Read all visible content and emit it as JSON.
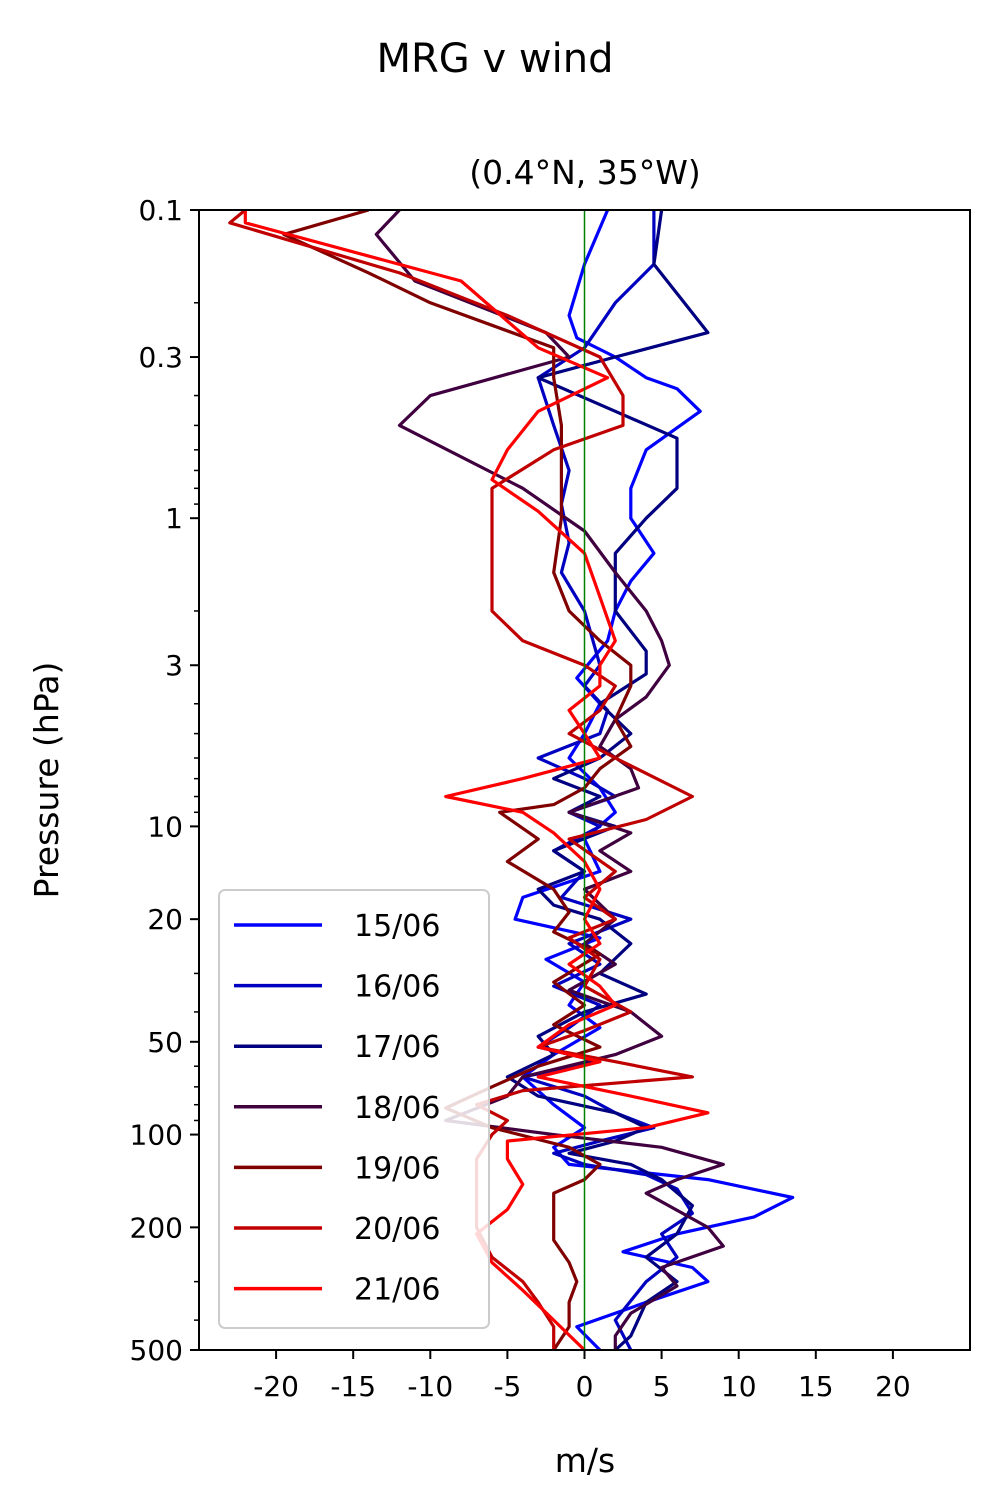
{
  "chart_data": {
    "type": "line",
    "title": "MRG v wind",
    "subtitle": "(0.4°N, 35°W)",
    "xlabel": "m/s",
    "ylabel": "Pressure (hPa)",
    "xlim": [
      -25,
      25
    ],
    "ylim": [
      500,
      0.1
    ],
    "y_scale": "log",
    "y_inverted": true,
    "xticks": [
      -20,
      -15,
      -10,
      -5,
      0,
      5,
      10,
      15,
      20
    ],
    "xtick_labels": [
      "-20",
      "-15",
      "-10",
      "-5",
      "0",
      "5",
      "10",
      "15",
      "20"
    ],
    "yticks": [
      0.1,
      0.3,
      1,
      3,
      10,
      20,
      50,
      100,
      200,
      500
    ],
    "ytick_labels": [
      "0.1",
      "0.3",
      "1",
      "3",
      "10",
      "20",
      "50",
      "100",
      "200",
      "500"
    ],
    "reference_line": {
      "x": 0,
      "color": "#008000"
    },
    "grid": false,
    "legend_position": "lower-left",
    "series": [
      {
        "name": "15/06",
        "color": "#0000ff",
        "points": [
          [
            1.5,
            0.1
          ],
          [
            0,
            0.15
          ],
          [
            -1,
            0.22
          ],
          [
            -0.5,
            0.26
          ],
          [
            2,
            0.3
          ],
          [
            4,
            0.35
          ],
          [
            6,
            0.38
          ],
          [
            7.5,
            0.45
          ],
          [
            4,
            0.6
          ],
          [
            3,
            0.8
          ],
          [
            3,
            1.0
          ],
          [
            4.5,
            1.3
          ],
          [
            3,
            1.6
          ],
          [
            2,
            2.0
          ],
          [
            1.5,
            2.5
          ],
          [
            -0.5,
            3.3
          ],
          [
            1,
            4.0
          ],
          [
            0,
            5.0
          ],
          [
            -1,
            6.0
          ],
          [
            1,
            7.5
          ],
          [
            2,
            9.0
          ],
          [
            0,
            11
          ],
          [
            1,
            14
          ],
          [
            -4,
            17
          ],
          [
            -4.5,
            20
          ],
          [
            1,
            23
          ],
          [
            -2.5,
            27
          ],
          [
            0,
            32
          ],
          [
            -1,
            38
          ],
          [
            1,
            45
          ],
          [
            -2,
            55
          ],
          [
            -4,
            65
          ],
          [
            -2,
            80
          ],
          [
            0,
            95
          ],
          [
            -2,
            110
          ],
          [
            -1,
            125
          ],
          [
            8,
            140
          ],
          [
            13.5,
            160
          ],
          [
            11,
            185
          ],
          [
            6,
            210
          ],
          [
            2.5,
            240
          ],
          [
            7,
            270
          ],
          [
            8,
            300
          ],
          [
            4,
            350
          ],
          [
            -0.5,
            420
          ],
          [
            1,
            500
          ]
        ]
      },
      {
        "name": "16/06",
        "color": "#0000c0",
        "points": [
          [
            4.5,
            0.1
          ],
          [
            4.5,
            0.15
          ],
          [
            2,
            0.2
          ],
          [
            0,
            0.28
          ],
          [
            -3,
            0.35
          ],
          [
            -2,
            0.5
          ],
          [
            -1,
            0.7
          ],
          [
            -1.5,
            0.9
          ],
          [
            -1,
            1.2
          ],
          [
            -1.5,
            1.5
          ],
          [
            0,
            2.0
          ],
          [
            1,
            3.0
          ],
          [
            0,
            3.5
          ],
          [
            1.5,
            4.2
          ],
          [
            1,
            5.0
          ],
          [
            -3,
            6.0
          ],
          [
            0,
            7.0
          ],
          [
            2,
            8.0
          ],
          [
            -1,
            9.0
          ],
          [
            1,
            10
          ],
          [
            -2,
            12
          ],
          [
            0,
            14
          ],
          [
            -1.5,
            17
          ],
          [
            3,
            20
          ],
          [
            -1,
            24
          ],
          [
            1,
            28
          ],
          [
            -2,
            33
          ],
          [
            1,
            38
          ],
          [
            -1,
            45
          ],
          [
            -3,
            52
          ],
          [
            1,
            58
          ],
          [
            -4,
            65
          ],
          [
            0,
            75
          ],
          [
            2,
            85
          ],
          [
            4.5,
            95
          ],
          [
            1,
            105
          ],
          [
            -2,
            115
          ],
          [
            0,
            125
          ],
          [
            4,
            135
          ],
          [
            6,
            150
          ],
          [
            7,
            180
          ],
          [
            5,
            210
          ],
          [
            6,
            250
          ],
          [
            4,
            300
          ],
          [
            2,
            400
          ],
          [
            3,
            500
          ]
        ]
      },
      {
        "name": "17/06",
        "color": "#000080",
        "points": [
          [
            5,
            0.1
          ],
          [
            4.5,
            0.15
          ],
          [
            8,
            0.25
          ],
          [
            2,
            0.3
          ],
          [
            -3,
            0.35
          ],
          [
            2,
            0.45
          ],
          [
            6,
            0.55
          ],
          [
            6,
            0.8
          ],
          [
            4,
            1.0
          ],
          [
            2,
            1.3
          ],
          [
            2,
            2.0
          ],
          [
            4,
            2.7
          ],
          [
            4,
            3.2
          ],
          [
            1,
            4.0
          ],
          [
            3,
            5.0
          ],
          [
            1,
            6.0
          ],
          [
            -2,
            7.0
          ],
          [
            1,
            8.0
          ],
          [
            -1,
            9.0
          ],
          [
            2,
            10
          ],
          [
            -2,
            12
          ],
          [
            0,
            14
          ],
          [
            -3,
            16
          ],
          [
            -2,
            18
          ],
          [
            1,
            20
          ],
          [
            3,
            24
          ],
          [
            1,
            30
          ],
          [
            4,
            35
          ],
          [
            0,
            40
          ],
          [
            -3,
            48
          ],
          [
            -2,
            55
          ],
          [
            -5,
            65
          ],
          [
            -3,
            75
          ],
          [
            2,
            85
          ],
          [
            4,
            95
          ],
          [
            2,
            105
          ],
          [
            -1,
            115
          ],
          [
            3,
            125
          ],
          [
            5,
            140
          ],
          [
            7,
            170
          ],
          [
            6,
            210
          ],
          [
            4,
            250
          ],
          [
            6,
            300
          ],
          [
            4,
            350
          ],
          [
            3,
            450
          ],
          [
            2,
            500
          ]
        ]
      },
      {
        "name": "18/06",
        "color": "#400040",
        "points": [
          [
            -12,
            0.1
          ],
          [
            -13.5,
            0.12
          ],
          [
            -11,
            0.17
          ],
          [
            -2.5,
            0.25
          ],
          [
            -1,
            0.3
          ],
          [
            -10,
            0.4
          ],
          [
            -12,
            0.5
          ],
          [
            -4,
            0.8
          ],
          [
            0,
            1.1
          ],
          [
            2,
            1.5
          ],
          [
            4,
            2.0
          ],
          [
            5,
            2.5
          ],
          [
            5.5,
            3.0
          ],
          [
            4,
            3.8
          ],
          [
            2,
            4.5
          ],
          [
            1,
            5.5
          ],
          [
            3,
            6.5
          ],
          [
            3.5,
            7.5
          ],
          [
            -1,
            9.0
          ],
          [
            3,
            10.5
          ],
          [
            1,
            12
          ],
          [
            3,
            14
          ],
          [
            0,
            16
          ],
          [
            2,
            20
          ],
          [
            0,
            24
          ],
          [
            2,
            28
          ],
          [
            -1,
            34
          ],
          [
            3,
            40
          ],
          [
            5,
            48
          ],
          [
            2,
            55
          ],
          [
            -4,
            65
          ],
          [
            -5,
            75
          ],
          [
            -9,
            90
          ],
          [
            -2,
            100
          ],
          [
            5,
            110
          ],
          [
            9,
            125
          ],
          [
            6,
            140
          ],
          [
            4,
            155
          ],
          [
            8,
            200
          ],
          [
            9,
            230
          ],
          [
            5,
            270
          ],
          [
            6,
            310
          ],
          [
            3,
            380
          ],
          [
            2,
            450
          ],
          [
            2,
            500
          ]
        ]
      },
      {
        "name": "19/06",
        "color": "#800000",
        "points": [
          [
            -14,
            0.1
          ],
          [
            -19.5,
            0.12
          ],
          [
            -14,
            0.16
          ],
          [
            -10,
            0.2
          ],
          [
            -2,
            0.28
          ],
          [
            -2,
            0.35
          ],
          [
            -1.5,
            0.5
          ],
          [
            -1.5,
            0.7
          ],
          [
            -1.5,
            1.0
          ],
          [
            -2,
            1.5
          ],
          [
            -1,
            2.0
          ],
          [
            1,
            2.5
          ],
          [
            3,
            3.0
          ],
          [
            3,
            3.5
          ],
          [
            2,
            4.5
          ],
          [
            3,
            5.5
          ],
          [
            1,
            6.5
          ],
          [
            0,
            7.5
          ],
          [
            -2,
            8.5
          ],
          [
            -5.5,
            9.0
          ],
          [
            -3,
            11
          ],
          [
            -5,
            13
          ],
          [
            -2,
            16
          ],
          [
            -1,
            19
          ],
          [
            -2,
            22
          ],
          [
            1,
            26
          ],
          [
            -2,
            32
          ],
          [
            0,
            38
          ],
          [
            -2,
            44
          ],
          [
            1,
            52
          ],
          [
            -3,
            60
          ],
          [
            -6,
            70
          ],
          [
            -9,
            82
          ],
          [
            -6,
            95
          ],
          [
            -1,
            110
          ],
          [
            1,
            125
          ],
          [
            0,
            140
          ],
          [
            -2,
            155
          ],
          [
            -2,
            180
          ],
          [
            -2,
            220
          ],
          [
            -1,
            260
          ],
          [
            -0.5,
            300
          ],
          [
            -1,
            350
          ],
          [
            -1,
            420
          ],
          [
            -2,
            500
          ]
        ]
      },
      {
        "name": "20/06",
        "color": "#c00000",
        "points": [
          [
            -22,
            0.1
          ],
          [
            -23,
            0.11
          ],
          [
            -12,
            0.16
          ],
          [
            -5,
            0.22
          ],
          [
            1,
            0.3
          ],
          [
            2.5,
            0.4
          ],
          [
            2.5,
            0.5
          ],
          [
            -2,
            0.6
          ],
          [
            -6,
            0.8
          ],
          [
            -6,
            1.2
          ],
          [
            -6,
            1.6
          ],
          [
            -6,
            2.0
          ],
          [
            -4,
            2.5
          ],
          [
            0,
            3.0
          ],
          [
            2,
            3.5
          ],
          [
            1,
            4.2
          ],
          [
            -1,
            5.0
          ],
          [
            2,
            6.0
          ],
          [
            7,
            8.0
          ],
          [
            4,
            9.5
          ],
          [
            -1,
            11
          ],
          [
            2,
            14
          ],
          [
            0,
            17
          ],
          [
            2,
            20
          ],
          [
            -1,
            23
          ],
          [
            1,
            27
          ],
          [
            0,
            33
          ],
          [
            3,
            40
          ],
          [
            0,
            46
          ],
          [
            -3,
            52
          ],
          [
            2,
            58
          ],
          [
            7,
            65
          ],
          [
            -4,
            72
          ],
          [
            -7,
            80
          ],
          [
            -5,
            90
          ],
          [
            -6,
            100
          ],
          [
            -7,
            120
          ],
          [
            -7,
            150
          ],
          [
            -7,
            200
          ],
          [
            -6,
            250
          ],
          [
            -4,
            300
          ],
          [
            -3,
            350
          ],
          [
            -2,
            420
          ],
          [
            -2,
            500
          ]
        ]
      },
      {
        "name": "21/06",
        "color": "#ff0000",
        "points": [
          [
            -22,
            0.1
          ],
          [
            -22,
            0.11
          ],
          [
            -8,
            0.17
          ],
          [
            -3,
            0.28
          ],
          [
            1.5,
            0.35
          ],
          [
            -3,
            0.45
          ],
          [
            -5,
            0.6
          ],
          [
            -6,
            0.75
          ],
          [
            -3,
            0.95
          ],
          [
            0,
            1.3
          ],
          [
            1,
            1.8
          ],
          [
            2,
            2.5
          ],
          [
            1,
            3.0
          ],
          [
            1,
            3.5
          ],
          [
            -1,
            4.2
          ],
          [
            0,
            5.0
          ],
          [
            1,
            6.0
          ],
          [
            -4,
            7.0
          ],
          [
            -9,
            8.0
          ],
          [
            -4,
            9.0
          ],
          [
            -2,
            10.5
          ],
          [
            0,
            13
          ],
          [
            1,
            16
          ],
          [
            0,
            20
          ],
          [
            1,
            24
          ],
          [
            -1,
            28
          ],
          [
            1,
            33
          ],
          [
            2,
            38
          ],
          [
            -1,
            44
          ],
          [
            -3,
            52
          ],
          [
            1,
            58
          ],
          [
            -3,
            65
          ],
          [
            3,
            75
          ],
          [
            8,
            85
          ],
          [
            4,
            95
          ],
          [
            -5,
            105
          ],
          [
            -5,
            120
          ],
          [
            -4,
            145
          ],
          [
            -5,
            175
          ],
          [
            -7,
            210
          ],
          [
            -6,
            260
          ],
          [
            -4,
            320
          ],
          [
            -2,
            400
          ],
          [
            0,
            500
          ]
        ]
      }
    ]
  }
}
